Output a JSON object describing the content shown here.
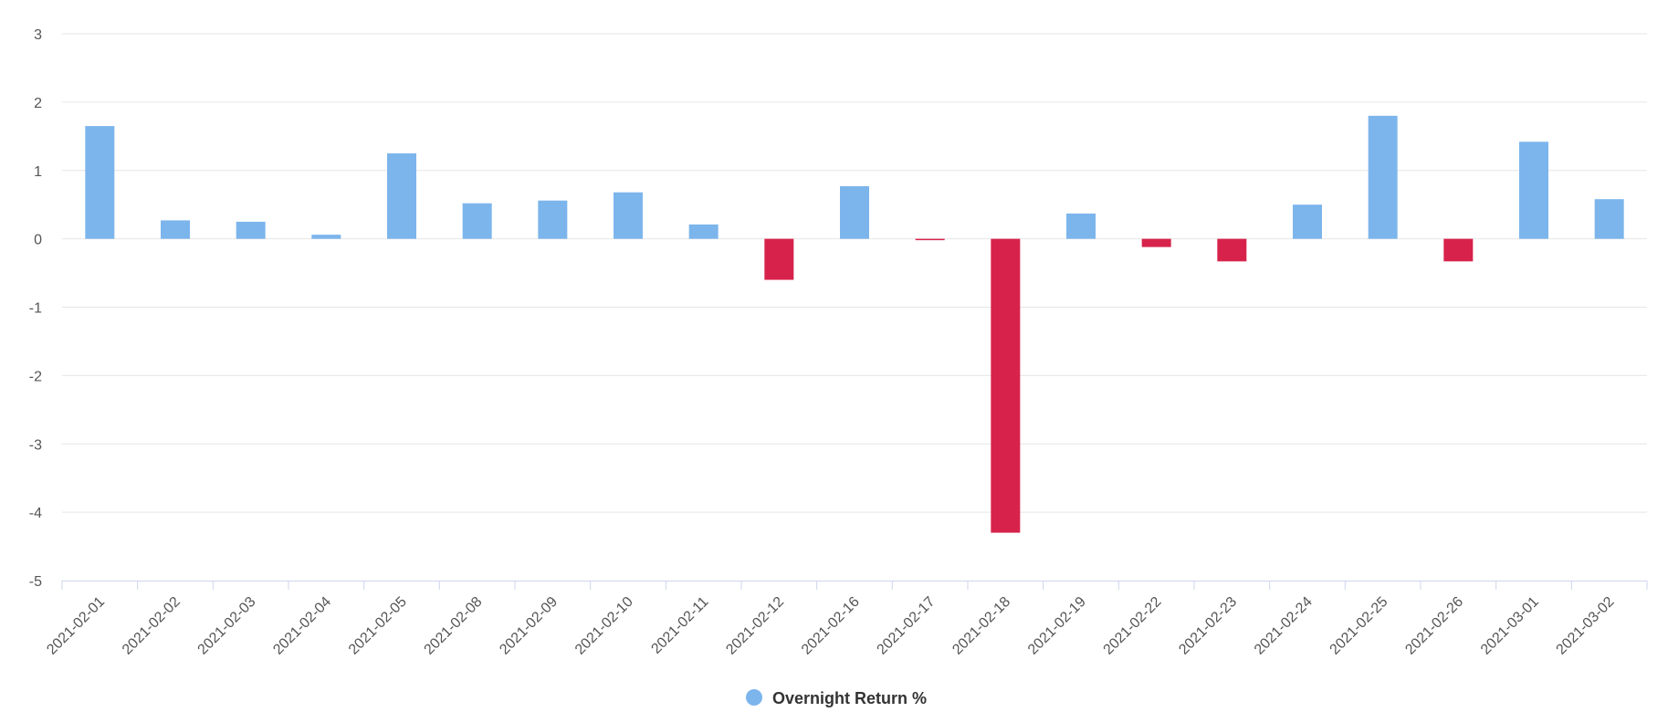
{
  "chart_data": {
    "type": "bar",
    "categories": [
      "2021-02-01",
      "2021-02-02",
      "2021-02-03",
      "2021-02-04",
      "2021-02-05",
      "2021-02-08",
      "2021-02-09",
      "2021-02-10",
      "2021-02-11",
      "2021-02-12",
      "2021-02-16",
      "2021-02-17",
      "2021-02-18",
      "2021-02-19",
      "2021-02-22",
      "2021-02-23",
      "2021-02-24",
      "2021-02-25",
      "2021-02-26",
      "2021-03-01",
      "2021-03-02"
    ],
    "series": [
      {
        "name": "Overnight Return %",
        "values": [
          1.65,
          0.27,
          0.25,
          0.06,
          1.25,
          0.52,
          0.56,
          0.68,
          0.21,
          -0.6,
          0.77,
          -0.02,
          -4.3,
          0.37,
          -0.12,
          -0.33,
          0.5,
          1.8,
          -0.33,
          1.42,
          0.58
        ]
      }
    ],
    "title": "",
    "xlabel": "",
    "ylabel": "",
    "ylim": [
      -5,
      3
    ],
    "yticks": [
      "3",
      "2",
      "1",
      "0",
      "-1",
      "-2",
      "-3",
      "-4",
      "-5"
    ],
    "grid": true,
    "legend_position": "bottom-center",
    "colors": {
      "positive": "#7cb5ec",
      "negative": "#d7234b",
      "grid": "#e6e6e6",
      "axis": "#ccd6eb"
    }
  }
}
